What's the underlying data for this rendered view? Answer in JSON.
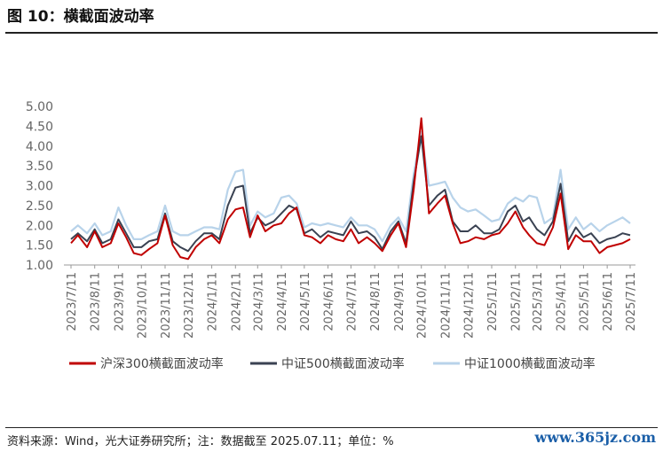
{
  "header": {
    "title": "图 10：横截面波动率"
  },
  "footer": {
    "source": "资料来源：Wind，光大证券研究所；注：数据截至 2025.07.11；单位：%"
  },
  "watermark": {
    "text": "www.365jz.com"
  },
  "chart_data": {
    "type": "line",
    "title": "",
    "xlabel": "",
    "ylabel": "",
    "ylim": [
      1.0,
      5.0
    ],
    "yticks": [
      "5.00",
      "4.50",
      "4.00",
      "3.50",
      "3.00",
      "2.50",
      "2.00",
      "1.50",
      "1.00"
    ],
    "xticks": [
      "2023/7/11",
      "2023/8/11",
      "2023/9/11",
      "2023/10/11",
      "2023/11/11",
      "2023/12/11",
      "2024/1/11",
      "2024/2/11",
      "2024/3/11",
      "2024/4/11",
      "2024/5/11",
      "2024/6/11",
      "2024/7/11",
      "2024/8/11",
      "2024/9/11",
      "2024/10/11",
      "2024/11/11",
      "2024/12/11",
      "2025/1/11",
      "2025/2/11",
      "2025/3/11",
      "2025/4/11",
      "2025/5/11",
      "2025/6/11",
      "2025/7/11"
    ],
    "grid": false,
    "legend_position": "bottom",
    "x": [
      "2023/7/11",
      "2023/7/20",
      "2023/8/1",
      "2023/8/11",
      "2023/8/21",
      "2023/9/1",
      "2023/9/11",
      "2023/9/21",
      "2023/10/1",
      "2023/10/11",
      "2023/10/21",
      "2023/11/1",
      "2023/11/11",
      "2023/11/21",
      "2023/12/1",
      "2023/12/11",
      "2023/12/21",
      "2024/1/1",
      "2024/1/11",
      "2024/1/21",
      "2024/2/1",
      "2024/2/11",
      "2024/2/21",
      "2024/3/1",
      "2024/3/11",
      "2024/3/21",
      "2024/4/1",
      "2024/4/11",
      "2024/4/21",
      "2024/5/1",
      "2024/5/11",
      "2024/5/21",
      "2024/6/1",
      "2024/6/11",
      "2024/6/21",
      "2024/7/1",
      "2024/7/11",
      "2024/7/21",
      "2024/8/1",
      "2024/8/11",
      "2024/8/21",
      "2024/9/1",
      "2024/9/11",
      "2024/9/21",
      "2024/10/1",
      "2024/10/11",
      "2024/10/21",
      "2024/11/1",
      "2024/11/11",
      "2024/11/21",
      "2024/12/1",
      "2024/12/11",
      "2024/12/21",
      "2025/1/1",
      "2025/1/11",
      "2025/1/21",
      "2025/2/1",
      "2025/2/11",
      "2025/2/21",
      "2025/3/1",
      "2025/3/11",
      "2025/3/21",
      "2025/4/1",
      "2025/4/11",
      "2025/4/21",
      "2025/5/1",
      "2025/5/11",
      "2025/5/21",
      "2025/6/1",
      "2025/6/11",
      "2025/6/21",
      "2025/7/1",
      "2025/7/11"
    ],
    "series": [
      {
        "name": "沪深300横截面波动率",
        "color": "#c00000",
        "values": [
          1.55,
          1.75,
          1.45,
          1.85,
          1.45,
          1.55,
          2.05,
          1.7,
          1.3,
          1.25,
          1.4,
          1.55,
          2.25,
          1.5,
          1.2,
          1.15,
          1.45,
          1.65,
          1.75,
          1.55,
          2.15,
          2.4,
          2.45,
          1.7,
          2.25,
          1.85,
          2.0,
          2.05,
          2.3,
          2.45,
          1.75,
          1.7,
          1.55,
          1.75,
          1.65,
          1.6,
          1.9,
          1.55,
          1.7,
          1.55,
          1.35,
          1.75,
          2.05,
          1.45,
          2.9,
          4.7,
          2.3,
          2.55,
          2.75,
          2.05,
          1.55,
          1.6,
          1.7,
          1.65,
          1.75,
          1.8,
          2.05,
          2.35,
          1.95,
          1.75,
          1.55,
          1.5,
          1.95,
          2.8,
          1.4,
          1.75,
          1.6,
          1.6,
          1.3,
          1.45,
          1.5,
          1.55,
          1.65
        ]
      },
      {
        "name": "中证500横截面波动率",
        "color": "#3a4252",
        "values": [
          1.65,
          1.8,
          1.6,
          1.9,
          1.55,
          1.65,
          2.15,
          1.8,
          1.45,
          1.45,
          1.6,
          1.65,
          2.3,
          1.6,
          1.45,
          1.35,
          1.6,
          1.8,
          1.8,
          1.65,
          2.5,
          2.95,
          3.0,
          1.8,
          2.2,
          2.0,
          2.1,
          2.3,
          2.5,
          2.4,
          1.8,
          1.9,
          1.7,
          1.85,
          1.8,
          1.75,
          2.1,
          1.8,
          1.85,
          1.7,
          1.4,
          1.85,
          2.1,
          1.55,
          3.1,
          4.25,
          2.5,
          2.75,
          2.9,
          2.1,
          1.85,
          1.85,
          2.0,
          1.8,
          1.8,
          1.9,
          2.35,
          2.5,
          2.1,
          2.2,
          1.9,
          1.75,
          2.1,
          3.05,
          1.6,
          1.95,
          1.7,
          1.8,
          1.55,
          1.65,
          1.7,
          1.8,
          1.75
        ]
      },
      {
        "name": "中证1000横截面波动率",
        "color": "#b8d3ea",
        "values": [
          1.85,
          2.0,
          1.8,
          2.05,
          1.75,
          1.85,
          2.45,
          2.0,
          1.65,
          1.65,
          1.75,
          1.85,
          2.5,
          1.85,
          1.75,
          1.75,
          1.85,
          1.95,
          1.95,
          1.9,
          2.9,
          3.35,
          3.4,
          2.0,
          2.35,
          2.2,
          2.3,
          2.7,
          2.75,
          2.55,
          1.95,
          2.05,
          2.0,
          2.05,
          2.0,
          1.95,
          2.2,
          2.0,
          2.0,
          1.9,
          1.6,
          2.0,
          2.2,
          1.85,
          3.3,
          4.35,
          3.0,
          3.05,
          3.1,
          2.7,
          2.45,
          2.35,
          2.4,
          2.25,
          2.1,
          2.15,
          2.55,
          2.7,
          2.6,
          2.75,
          2.7,
          2.05,
          2.2,
          3.4,
          1.9,
          2.2,
          1.9,
          2.05,
          1.85,
          2.0,
          2.1,
          2.2,
          2.05
        ]
      }
    ]
  }
}
